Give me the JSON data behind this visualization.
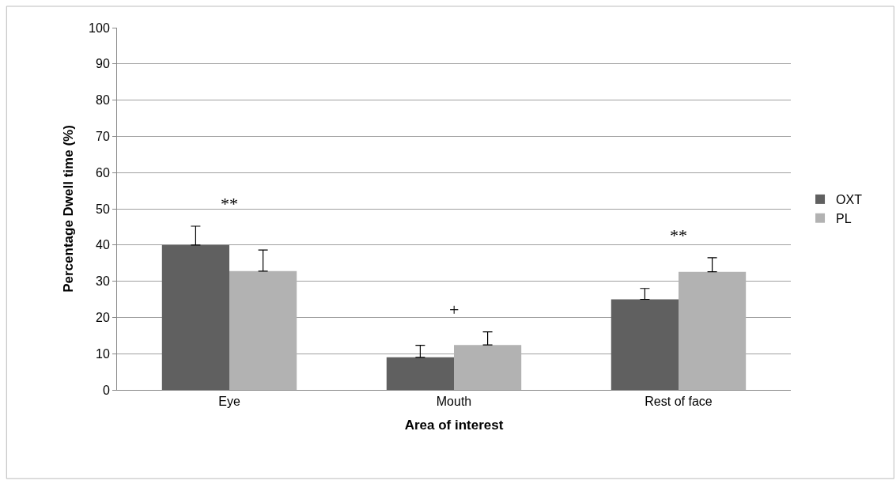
{
  "chart_data": {
    "type": "bar",
    "xlabel": "Area of interest",
    "ylabel": "Percentage Dwell time (%)",
    "categories": [
      "Eye",
      "Mouth",
      "Rest of face"
    ],
    "series": [
      {
        "name": "OXT",
        "color": "#606060",
        "values": [
          40,
          9,
          25
        ],
        "errors": [
          [
            40,
            45.2
          ],
          [
            9,
            12.3
          ],
          [
            25,
            28.0
          ]
        ]
      },
      {
        "name": "PL",
        "color": "#b2b2b2",
        "values": [
          32.8,
          12.4,
          32.6
        ],
        "errors": [
          [
            32.8,
            38.6
          ],
          [
            12.4,
            16.0
          ],
          [
            32.6,
            36.5
          ]
        ]
      }
    ],
    "ylim": [
      0,
      100
    ],
    "yticks": [
      0,
      10,
      20,
      30,
      40,
      50,
      60,
      70,
      80,
      90,
      100
    ],
    "grid": "y",
    "legend": "right",
    "annotations": [
      "**",
      "+",
      "**"
    ]
  }
}
